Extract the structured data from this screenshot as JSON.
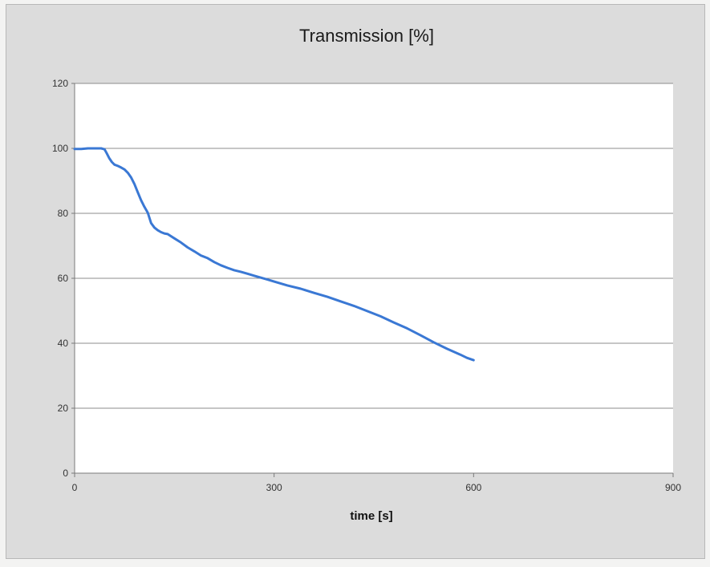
{
  "chart_data": {
    "type": "line",
    "title": "Transmission [%]",
    "xlabel": "time [s]",
    "ylabel": "",
    "xlim": [
      0,
      900
    ],
    "ylim": [
      0,
      120
    ],
    "xticks": [
      0,
      300,
      600,
      900
    ],
    "yticks": [
      0,
      20,
      40,
      60,
      80,
      100,
      120
    ],
    "grid": "horizontal",
    "legend": "none",
    "series": [
      {
        "color": "#3a78d4",
        "x": [
          0,
          10,
          20,
          30,
          40,
          45,
          48,
          52,
          56,
          60,
          65,
          70,
          75,
          80,
          85,
          90,
          95,
          100,
          105,
          110,
          115,
          120,
          125,
          130,
          135,
          140,
          150,
          160,
          170,
          180,
          190,
          200,
          210,
          220,
          230,
          240,
          250,
          260,
          270,
          280,
          290,
          300,
          320,
          340,
          360,
          380,
          400,
          420,
          440,
          460,
          480,
          500,
          520,
          540,
          560,
          580,
          590,
          600
        ],
        "y": [
          99.8,
          99.8,
          100,
          100,
          100,
          99.7,
          98.6,
          97.0,
          95.8,
          95.0,
          94.6,
          94.1,
          93.5,
          92.5,
          91.0,
          89.0,
          86.5,
          84.0,
          82.0,
          80.2,
          77.0,
          75.6,
          74.8,
          74.2,
          73.8,
          73.6,
          72.3,
          71.0,
          69.5,
          68.3,
          67.0,
          66.2,
          65.0,
          64.0,
          63.2,
          62.5,
          62.0,
          61.4,
          60.8,
          60.2,
          59.6,
          59.0,
          57.8,
          56.8,
          55.5,
          54.3,
          52.9,
          51.5,
          49.9,
          48.3,
          46.4,
          44.6,
          42.5,
          40.3,
          38.3,
          36.5,
          35.5,
          34.8
        ]
      }
    ]
  }
}
